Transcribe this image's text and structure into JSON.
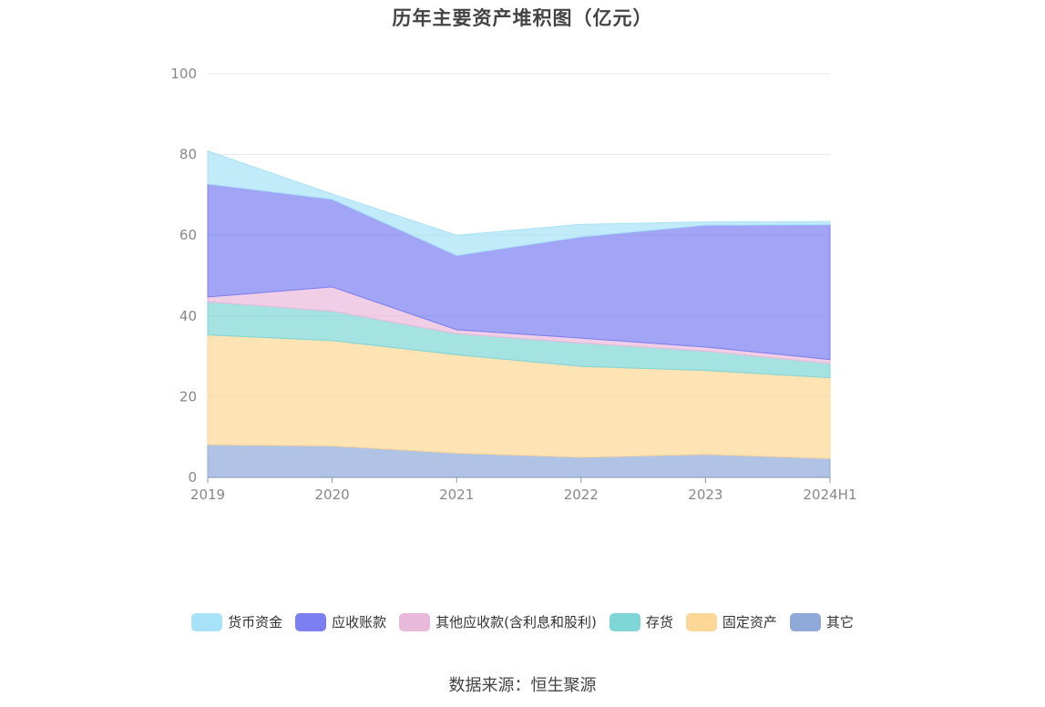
{
  "chart_data": {
    "type": "area",
    "title": "历年主要资产堆积图（亿元）",
    "categories": [
      "2019",
      "2020",
      "2021",
      "2022",
      "2023",
      "2024H1"
    ],
    "ylim": [
      0,
      100
    ],
    "yticks": [
      "0",
      "20",
      "40",
      "60",
      "80",
      "100"
    ],
    "stacked": true,
    "series": [
      {
        "name": "其它",
        "values": [
          8.1,
          7.8,
          6.0,
          5.0,
          5.7,
          4.7
        ],
        "color": "#8fa9d8"
      },
      {
        "name": "固定资产",
        "values": [
          27.2,
          26.1,
          24.4,
          22.5,
          20.8,
          20.0
        ],
        "color": "#fdd796"
      },
      {
        "name": "存货",
        "values": [
          8.2,
          7.3,
          5.2,
          5.8,
          4.8,
          3.5
        ],
        "color": "#7fd6d6"
      },
      {
        "name": "其他应收款(含利息和股利)",
        "values": [
          1.2,
          6.0,
          1.0,
          1.2,
          1.0,
          1.0
        ],
        "color": "#e9b9db"
      },
      {
        "name": "应收账款",
        "values": [
          28.0,
          21.7,
          18.4,
          25.1,
          30.2,
          33.4
        ],
        "color": "#7b7ff2"
      },
      {
        "name": "货币资金",
        "values": [
          8.2,
          1.3,
          5.0,
          3.1,
          0.8,
          0.8
        ],
        "color": "#a8e2f8"
      }
    ],
    "legend_position": "bottom",
    "grid": true
  },
  "legend_order": [
    {
      "label": "货币资金",
      "color": "#a8e2f8"
    },
    {
      "label": "应收账款",
      "color": "#7b7ff2"
    },
    {
      "label": "其他应收款(含利息和股利)",
      "color": "#e9b9db"
    },
    {
      "label": "存货",
      "color": "#7fd6d6"
    },
    {
      "label": "固定资产",
      "color": "#fdd796"
    },
    {
      "label": "其它",
      "color": "#8fa9d8"
    }
  ],
  "source": "数据来源：恒生聚源"
}
